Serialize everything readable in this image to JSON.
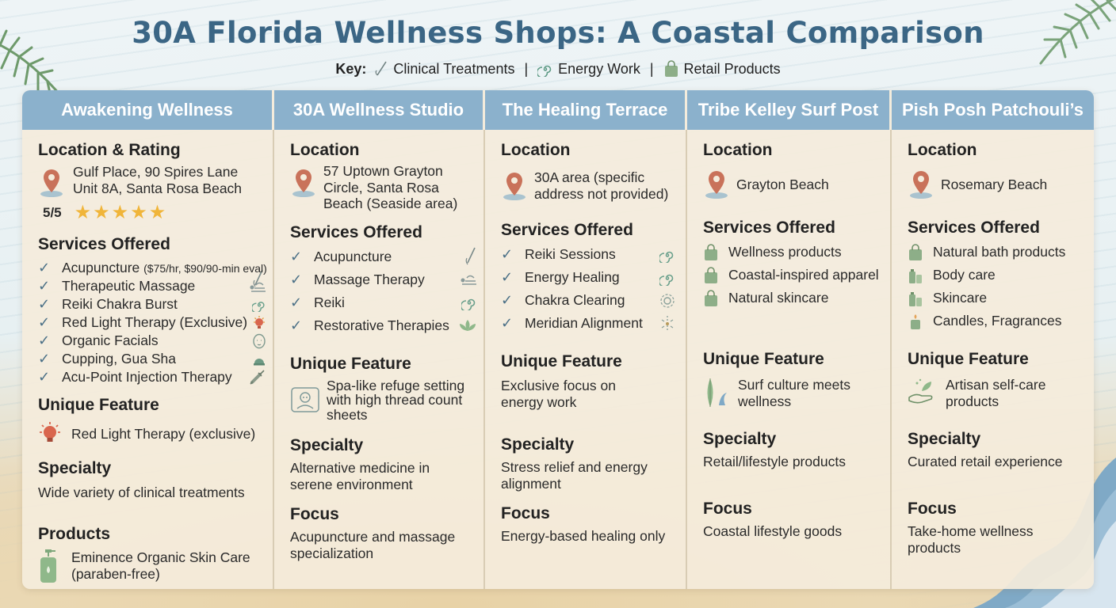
{
  "title": "30A Florida Wellness Shops: A Coastal Comparison",
  "key": {
    "label": "Key:",
    "items": [
      "Clinical Treatments",
      "Energy Work",
      "Retail Products"
    ]
  },
  "colors": {
    "header": "#8bb1cc",
    "title": "#3b6685",
    "panel": "#f4ecdc",
    "star": "#f0b53a"
  },
  "shops": [
    {
      "name": "Awakening Wellness",
      "location_heading": "Location & Rating",
      "address": [
        "Gulf Place, 90 Spires Lane",
        "Unit 8A, Santa Rosa Beach"
      ],
      "rating": "5/5",
      "stars": "★★★★★",
      "services_heading": "Services Offered",
      "services": [
        {
          "label": "Acupuncture",
          "note": "($75/hr, $90/90-min eval)",
          "icon": "needle-icon"
        },
        {
          "label": "Therapeutic Massage",
          "icon": "massage-icon"
        },
        {
          "label": "Reiki Chakra Burst",
          "icon": "spiral-icon"
        },
        {
          "label": "Red Light Therapy (Exclusive)",
          "icon": "lightbulb-icon"
        },
        {
          "label": "Organic Facials",
          "icon": "face-icon"
        },
        {
          "label": "Cupping, Gua Sha",
          "icon": "cupping-icon"
        },
        {
          "label": "Acu-Point Injection Therapy",
          "icon": "syringe-icon"
        }
      ],
      "feature_heading": "Unique Feature",
      "feature": "Red Light Therapy (exclusive)",
      "specialty_heading": "Specialty",
      "specialty": "Wide variety of clinical treatments",
      "products_heading": "Products",
      "products": [
        "Eminence Organic Skin Care",
        "(paraben-free)"
      ]
    },
    {
      "name": "30A Wellness Studio",
      "location_heading": "Location",
      "address": [
        "57 Uptown Grayton",
        "Circle, Santa Rosa",
        "Beach (Seaside area)"
      ],
      "services_heading": "Services Offered",
      "services": [
        {
          "label": "Acupuncture",
          "icon": "needle-icon"
        },
        {
          "label": "Massage Therapy",
          "icon": "massage-icon"
        },
        {
          "label": "Reiki",
          "icon": "spiral-icon"
        },
        {
          "label": "Restorative Therapies",
          "icon": "lotus-icon"
        }
      ],
      "feature_heading": "Unique Feature",
      "feature": [
        "Spa-like refuge setting",
        "with high thread count",
        "sheets"
      ],
      "specialty_heading": "Specialty",
      "specialty": [
        "Alternative medicine in",
        "serene environment"
      ],
      "focus_heading": "Focus",
      "focus": [
        "Acupuncture and massage",
        "specialization"
      ]
    },
    {
      "name": "The Healing Terrace",
      "location_heading": "Location",
      "address": [
        "30A area (specific",
        "address not provided)"
      ],
      "services_heading": "Services Offered",
      "services": [
        {
          "label": "Reiki Sessions",
          "icon": "spiral-icon"
        },
        {
          "label": "Energy Healing",
          "icon": "spiral-icon"
        },
        {
          "label": "Chakra Clearing",
          "icon": "chakra-icon"
        },
        {
          "label": "Meridian Alignment",
          "icon": "meridian-icon"
        }
      ],
      "feature_heading": "Unique Feature",
      "feature": [
        "Exclusive focus on",
        "energy work"
      ],
      "specialty_heading": "Specialty",
      "specialty": [
        "Stress relief and energy",
        "alignment"
      ],
      "focus_heading": "Focus",
      "focus": [
        "Energy-based healing only"
      ]
    },
    {
      "name": "Tribe Kelley Surf Post",
      "location_heading": "Location",
      "address": [
        "Grayton Beach"
      ],
      "services_heading": "Services Offered",
      "services": [
        {
          "label": "Wellness products",
          "icon": "bag-icon"
        },
        {
          "label": "Coastal-inspired apparel",
          "icon": "bag-icon"
        },
        {
          "label": "Natural skincare",
          "icon": "bag-icon"
        }
      ],
      "feature_heading": "Unique Feature",
      "feature": [
        "Surf culture meets",
        "wellness"
      ],
      "specialty_heading": "Specialty",
      "specialty": [
        "Retail/lifestyle products"
      ],
      "focus_heading": "Focus",
      "focus": [
        "Coastal lifestyle goods"
      ]
    },
    {
      "name": "Pish Posh Patchouli’s",
      "location_heading": "Location",
      "address": [
        "Rosemary Beach"
      ],
      "services_heading": "Services Offered",
      "services": [
        {
          "label": "Natural bath products",
          "icon": "bag-icon"
        },
        {
          "label": "Body care",
          "icon": "bottles-icon"
        },
        {
          "label": "Skincare",
          "icon": "bottles-icon"
        },
        {
          "label": "Candles, Fragrances",
          "icon": "candle-icon"
        }
      ],
      "feature_heading": "Unique Feature",
      "feature": [
        "Artisan self-care",
        "products"
      ],
      "specialty_heading": "Specialty",
      "specialty": [
        "Curated retail experience"
      ],
      "focus_heading": "Focus",
      "focus": [
        "Take-home wellness",
        "products"
      ]
    }
  ]
}
